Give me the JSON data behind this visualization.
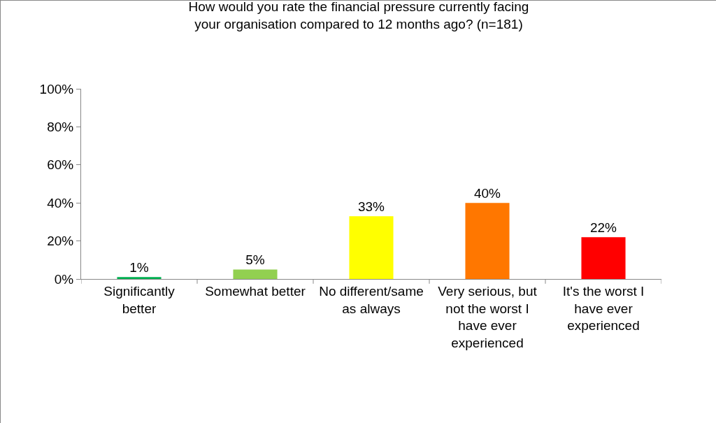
{
  "chart_data": {
    "type": "bar",
    "title": "How would you rate the financial pressure currently facing your organisation compared to 12 months ago? (n=181)",
    "categories": [
      "Significantly better",
      "Somewhat better",
      "No different/same as always",
      "Very serious, but not the worst I have ever experienced",
      "It's the worst I have ever experienced"
    ],
    "values": [
      1,
      5,
      33,
      40,
      22
    ],
    "value_labels": [
      "1%",
      "5%",
      "33%",
      "40%",
      "22%"
    ],
    "colors": [
      "#00b050",
      "#92d050",
      "#ffff00",
      "#ff7700",
      "#ff0000"
    ],
    "ylim": [
      0,
      100
    ],
    "yticks": [
      {
        "value": 0,
        "label": "0%"
      },
      {
        "value": 20,
        "label": "20%"
      },
      {
        "value": 40,
        "label": "40%"
      },
      {
        "value": 60,
        "label": "60%"
      },
      {
        "value": 80,
        "label": "80%"
      },
      {
        "value": 100,
        "label": "100%"
      }
    ],
    "grid": false,
    "legend": false
  }
}
